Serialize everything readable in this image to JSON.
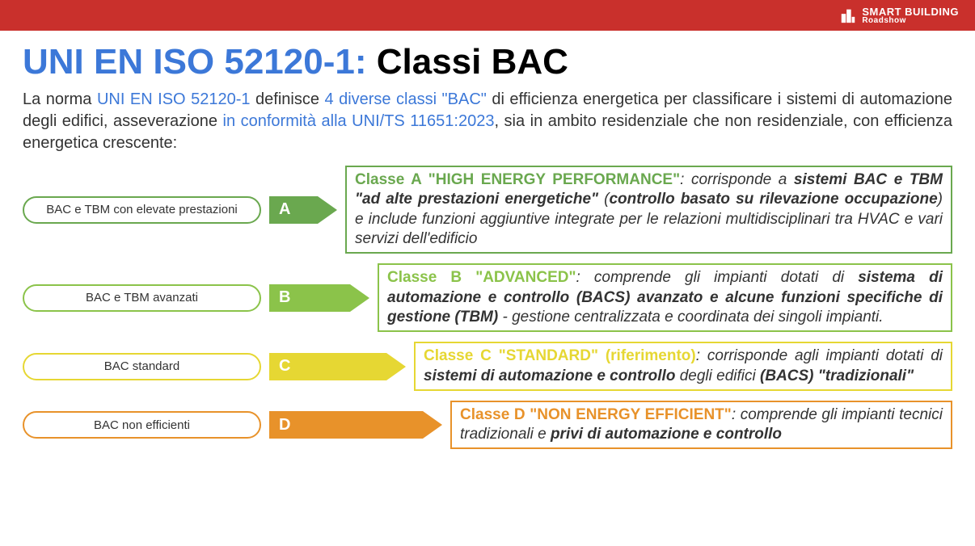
{
  "header": {
    "bar_color": "#c9302c",
    "logo": {
      "line1": "SMART",
      "line2": "BUILDING",
      "line3": "Roadshow"
    }
  },
  "title": {
    "part1": "UNI EN ISO 52120-1:",
    "part1_color": "#3c78d8",
    "part2": " Classi BAC",
    "part2_color": "#000000"
  },
  "intro": {
    "t1": "La norma ",
    "link1": "UNI EN ISO 52120-1",
    "t2": "  definisce ",
    "link2": "4 diverse classi \"BAC\"",
    "t3": " di efficienza energetica per classificare i sistemi di automazione degli edifici, asseverazione ",
    "link3": "in conformità alla UNI/TS 11651:2023",
    "t4": ", sia in ambito residenziale che non residenziale, con efficienza energetica crescente:",
    "link_color": "#3c78d8"
  },
  "classes": [
    {
      "pill": "BAC e TBM con elevate prestazioni",
      "letter": "A",
      "arrow_width": 60,
      "color": "#6aa84f",
      "lead": "Classe A \"HIGH ENERGY PERFORMANCE\"",
      "after_lead": ": corrisponde a ",
      "bold1": "sistemi BAC e TBM \"ad alte prestazioni energetiche\"",
      "mid1": " (",
      "bold2": "controllo basato su rilevazione occupazione",
      "mid2": ") e include funzioni aggiuntive integrate per le relazioni multidisciplinari tra HVAC e vari servizi dell'edificio",
      "tail": ""
    },
    {
      "pill": "BAC e TBM avanzati",
      "letter": "B",
      "arrow_width": 100,
      "color": "#8bc34a",
      "lead": "Classe B \"ADVANCED\"",
      "after_lead": ": comprende gli impianti dotati di ",
      "bold1": "sistema di automazione e controllo (BACS) avanzato e alcune funzioni specifiche di gestione (TBM)",
      "mid1": " - gestione centralizzata e coordinata dei singoli impianti.",
      "bold2": "",
      "mid2": "",
      "tail": ""
    },
    {
      "pill": "BAC standard",
      "letter": "C",
      "arrow_width": 145,
      "color": "#e6d733",
      "lead": "Classe C \"STANDARD\" (riferimento)",
      "after_lead": ": corrisponde agli impianti dotati di ",
      "bold1": "sistemi di automazione e controllo",
      "mid1": " degli edifici ",
      "bold2": "(BACS) \"tradizionali\"",
      "mid2": "",
      "tail": ""
    },
    {
      "pill": "BAC non efficienti",
      "letter": "D",
      "arrow_width": 190,
      "color": "#e8922a",
      "lead": "Classe D \"NON ENERGY EFFICIENT\"",
      "after_lead": ": comprende gli impianti tecnici tradizionali e ",
      "bold1": "privi di automazione e controllo",
      "mid1": "",
      "bold2": "",
      "mid2": "",
      "tail": ""
    }
  ]
}
